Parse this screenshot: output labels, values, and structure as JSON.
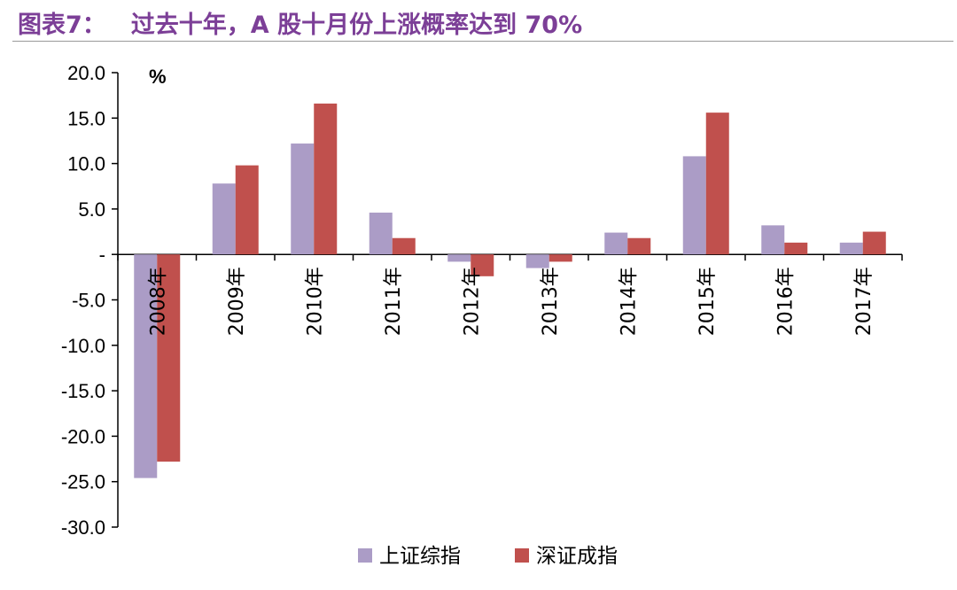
{
  "header": {
    "figure_label": "图表7：",
    "title": "过去十年，A 股十月份上涨概率达到 70%"
  },
  "chart_data": {
    "type": "bar",
    "title": "过去十年，A 股十月份上涨概率达到 70%",
    "unit_label": "%",
    "xlabel": "",
    "ylabel": "",
    "ylim": [
      -30,
      20
    ],
    "yticks": [
      20,
      15,
      10,
      5,
      0,
      -5,
      -10,
      -15,
      -20,
      -25,
      -30
    ],
    "ytick_labels": [
      "20.0",
      "15.0",
      "10.0",
      "5.0",
      "-",
      "-5.0",
      "-10.0",
      "-15.0",
      "-20.0",
      "-25.0",
      "-30.0"
    ],
    "categories": [
      "2008年",
      "2009年",
      "2010年",
      "2011年",
      "2012年",
      "2013年",
      "2014年",
      "2015年",
      "2016年",
      "2017年"
    ],
    "series": [
      {
        "name": "上证综指",
        "color": "#ab9cc6",
        "values": [
          -24.6,
          7.8,
          12.2,
          4.6,
          -0.8,
          -1.5,
          2.4,
          10.8,
          3.2,
          1.3
        ]
      },
      {
        "name": "深证成指",
        "color": "#c0504d",
        "values": [
          -22.8,
          9.8,
          16.6,
          1.8,
          -2.4,
          -0.8,
          1.8,
          15.6,
          1.3,
          2.5
        ]
      }
    ],
    "grid": false,
    "legend_position": "bottom"
  }
}
